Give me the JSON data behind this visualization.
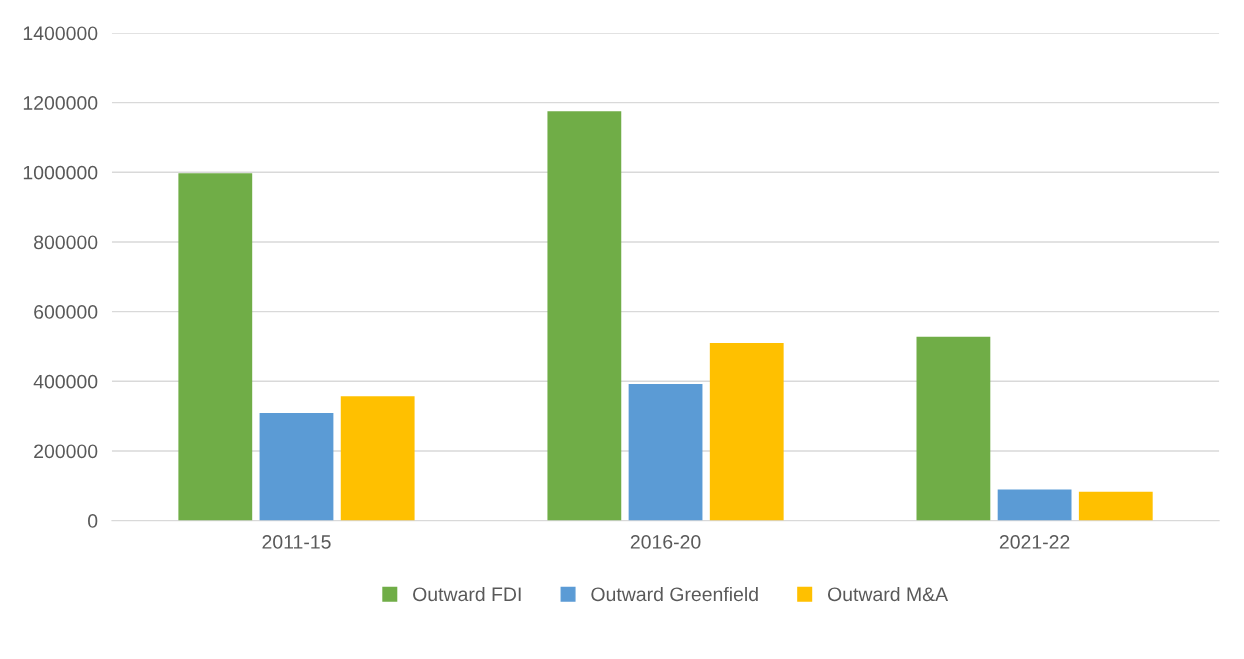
{
  "chart_data": {
    "type": "bar",
    "categories": [
      "2011-15",
      "2016-20",
      "2021-22"
    ],
    "series": [
      {
        "name": "Outward FDI",
        "color": "#70ad47",
        "values": [
          997000,
          1175000,
          528000
        ]
      },
      {
        "name": "Outward Greenfield",
        "color": "#5b9bd5",
        "values": [
          309000,
          392000,
          89000
        ]
      },
      {
        "name": "Outward M&A",
        "color": "#ffc000",
        "values": [
          357000,
          510000,
          83000
        ]
      }
    ],
    "ylim": [
      0,
      1400000
    ],
    "yticks": [
      0,
      200000,
      400000,
      600000,
      800000,
      1000000,
      1200000,
      1400000
    ],
    "grid": "y",
    "legend": "bottom"
  }
}
